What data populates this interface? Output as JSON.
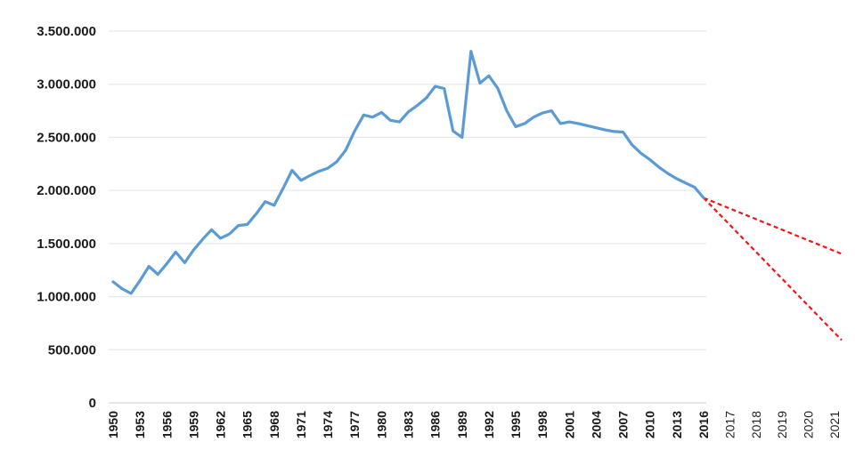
{
  "chart_data": {
    "type": "line",
    "title": "",
    "xlabel": "",
    "ylabel": "",
    "legend": "none",
    "grid": "horizontal",
    "ylim": [
      0,
      3500000
    ],
    "yticks": [
      {
        "value": 0,
        "label": "0"
      },
      {
        "value": 500000,
        "label": "500.000"
      },
      {
        "value": 1000000,
        "label": "1.000.000"
      },
      {
        "value": 1500000,
        "label": "1.500.000"
      },
      {
        "value": 2000000,
        "label": "2.000.000"
      },
      {
        "value": 2500000,
        "label": "2.500.000"
      },
      {
        "value": 3000000,
        "label": "3.000.000"
      },
      {
        "value": 3500000,
        "label": "3.500.000"
      }
    ],
    "xticks": [
      {
        "year": 1950,
        "label": "1950"
      },
      {
        "year": 1953,
        "label": "1953"
      },
      {
        "year": 1956,
        "label": "1956"
      },
      {
        "year": 1959,
        "label": "1959"
      },
      {
        "year": 1962,
        "label": "1962"
      },
      {
        "year": 1965,
        "label": "1965"
      },
      {
        "year": 1968,
        "label": "1968"
      },
      {
        "year": 1971,
        "label": "1971"
      },
      {
        "year": 1974,
        "label": "1974"
      },
      {
        "year": 1977,
        "label": "1977"
      },
      {
        "year": 1980,
        "label": "1980"
      },
      {
        "year": 1983,
        "label": "1983"
      },
      {
        "year": 1986,
        "label": "1986"
      },
      {
        "year": 1989,
        "label": "1989"
      },
      {
        "year": 1992,
        "label": "1992"
      },
      {
        "year": 1995,
        "label": "1995"
      },
      {
        "year": 1998,
        "label": "1998"
      },
      {
        "year": 2001,
        "label": "2001"
      },
      {
        "year": 2004,
        "label": "2004"
      },
      {
        "year": 2007,
        "label": "2007"
      },
      {
        "year": 2010,
        "label": "2010"
      },
      {
        "year": 2013,
        "label": "2013"
      },
      {
        "year": 2016,
        "label": "2016"
      },
      {
        "year": 2017,
        "label": "2017"
      },
      {
        "year": 2018,
        "label": "2018"
      },
      {
        "year": 2019,
        "label": "2019"
      },
      {
        "year": 2020,
        "label": "2020"
      },
      {
        "year": 2021,
        "label": "2021"
      }
    ],
    "series": [
      {
        "name": "historical-line",
        "color": "#5B9BD5",
        "years": [
          1950,
          1951,
          1952,
          1953,
          1954,
          1955,
          1956,
          1957,
          1958,
          1959,
          1960,
          1961,
          1962,
          1963,
          1964,
          1965,
          1966,
          1967,
          1968,
          1969,
          1970,
          1971,
          1972,
          1973,
          1974,
          1975,
          1976,
          1977,
          1978,
          1979,
          1980,
          1981,
          1982,
          1983,
          1984,
          1985,
          1986,
          1987,
          1988,
          1989,
          1990,
          1991,
          1992,
          1993,
          1994,
          1995,
          1996,
          1997,
          1998,
          1999,
          2000,
          2001,
          2002,
          2003,
          2004,
          2005,
          2006,
          2007,
          2008,
          2009,
          2010,
          2011,
          2012,
          2013,
          2014,
          2015,
          2016
        ],
        "values": [
          1140000,
          1075000,
          1030000,
          1150000,
          1285000,
          1210000,
          1310000,
          1420000,
          1320000,
          1440000,
          1540000,
          1630000,
          1550000,
          1590000,
          1670000,
          1680000,
          1780000,
          1895000,
          1860000,
          2020000,
          2190000,
          2095000,
          2140000,
          2180000,
          2210000,
          2270000,
          2380000,
          2560000,
          2710000,
          2690000,
          2735000,
          2660000,
          2645000,
          2740000,
          2800000,
          2870000,
          2980000,
          2960000,
          2560000,
          2500000,
          3310000,
          3010000,
          3080000,
          2960000,
          2750000,
          2600000,
          2630000,
          2690000,
          2730000,
          2750000,
          2630000,
          2645000,
          2630000,
          2610000,
          2590000,
          2570000,
          2555000,
          2550000,
          2430000,
          2350000,
          2290000,
          2220000,
          2160000,
          2110000,
          2070000,
          2030000,
          1930000
        ]
      }
    ],
    "projections": [
      {
        "name": "upper-projection",
        "color": "#F01414",
        "style": "dashed",
        "points": [
          {
            "year": 2016,
            "value": 1930000
          },
          {
            "year": 2021,
            "value": 1430000
          }
        ]
      },
      {
        "name": "lower-projection",
        "color": "#F01414",
        "style": "dashed",
        "points": [
          {
            "year": 2016,
            "value": 1930000
          },
          {
            "year": 2021,
            "value": 660000
          }
        ]
      }
    ],
    "colors": {
      "line": "#5B9BD5",
      "projection": "#F01414",
      "gridline": "#E8E8E8",
      "axis": "#D6D6D6",
      "label": "#1A1A1A"
    }
  }
}
